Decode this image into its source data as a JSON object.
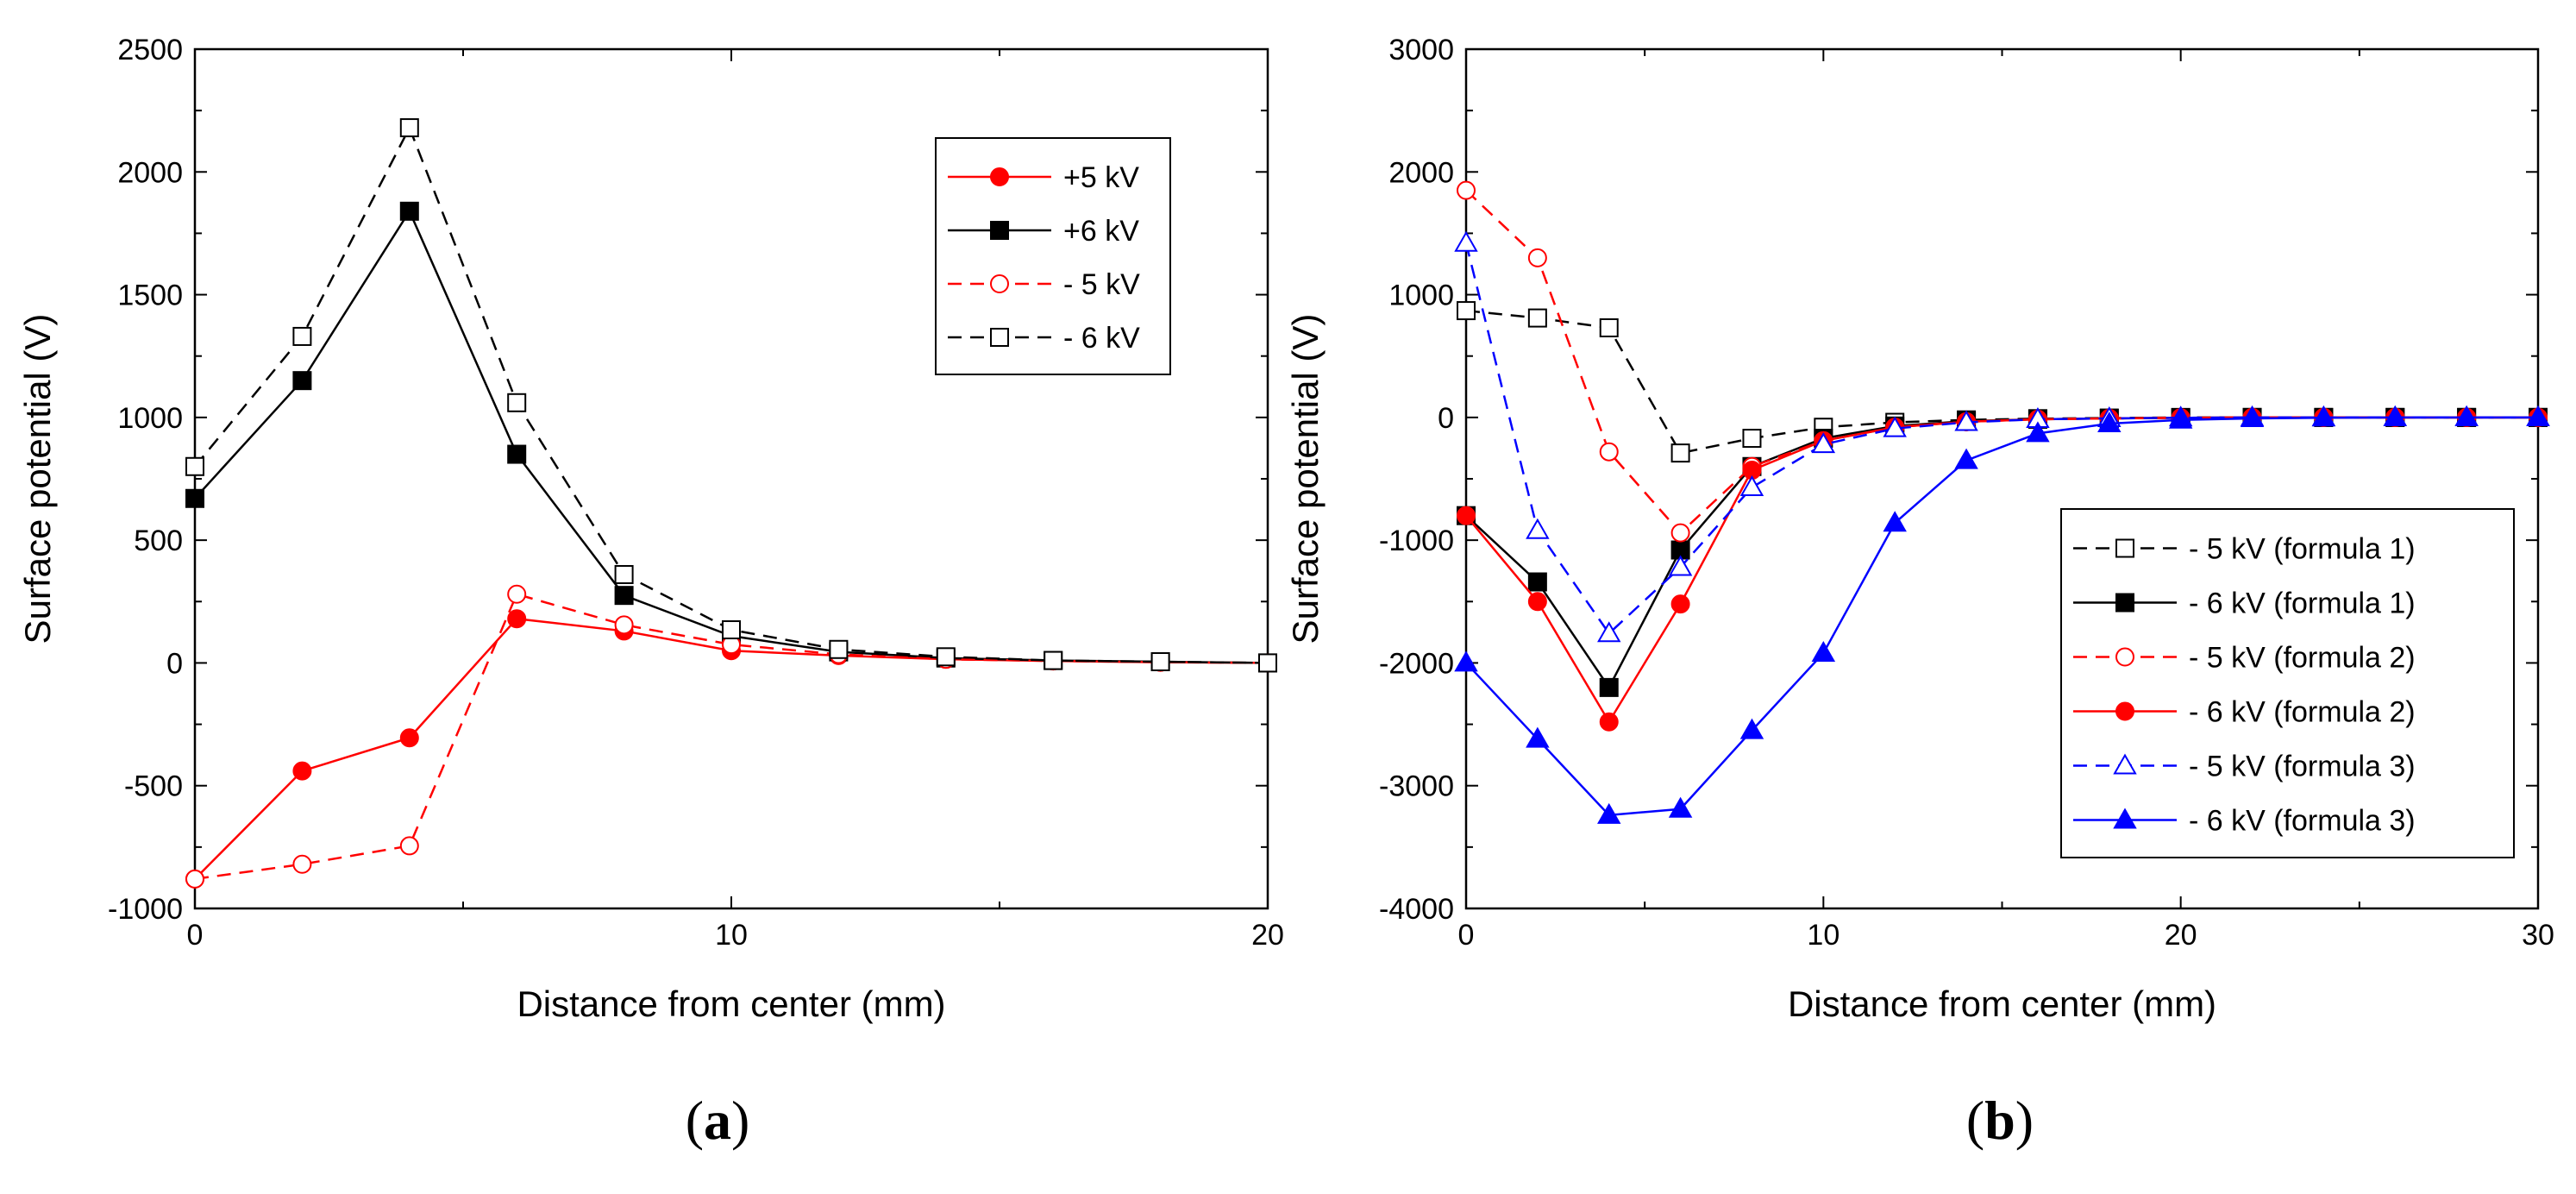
{
  "chart_data": [
    {
      "type": "line",
      "panel": "a",
      "panel_label_open": "(",
      "panel_label_letter": "a",
      "panel_label_close": ")",
      "xlabel": "Distance from center (mm)",
      "ylabel": "Surface potential (V)",
      "xlim": [
        0,
        20
      ],
      "ylim": [
        -1000,
        2500
      ],
      "xticks": [
        0,
        10,
        20
      ],
      "yticks": [
        -1000,
        -500,
        0,
        500,
        1000,
        1500,
        2000,
        2500
      ],
      "legend_position": "top-right",
      "series": [
        {
          "name": "+5 kV",
          "color": "#ff0000",
          "dash": "solid",
          "marker": "circle",
          "filled": true,
          "x": [
            0,
            2,
            4,
            6,
            8,
            10,
            12,
            14,
            16,
            18,
            20
          ],
          "y": [
            -880,
            -440,
            -305,
            180,
            130,
            50,
            30,
            15,
            8,
            3,
            0
          ]
        },
        {
          "name": "+6 kV",
          "color": "#000000",
          "dash": "solid",
          "marker": "square",
          "filled": true,
          "x": [
            0,
            2,
            4,
            6,
            8,
            10,
            12,
            14,
            16,
            18,
            20
          ],
          "y": [
            670,
            1150,
            1840,
            850,
            275,
            110,
            45,
            20,
            10,
            5,
            0
          ]
        },
        {
          "name": "- 5 kV",
          "color": "#ff0000",
          "dash": "dash",
          "marker": "circle",
          "filled": false,
          "x": [
            0,
            2,
            4,
            6,
            8,
            10,
            12,
            14,
            16,
            18,
            20
          ],
          "y": [
            -880,
            -820,
            -745,
            280,
            155,
            75,
            35,
            15,
            8,
            3,
            0
          ]
        },
        {
          "name": "- 6 kV",
          "color": "#000000",
          "dash": "dash",
          "marker": "square",
          "filled": false,
          "x": [
            0,
            2,
            4,
            6,
            8,
            10,
            12,
            14,
            16,
            18,
            20
          ],
          "y": [
            800,
            1330,
            2180,
            1060,
            360,
            135,
            55,
            25,
            10,
            5,
            0
          ]
        }
      ]
    },
    {
      "type": "line",
      "panel": "b",
      "panel_label_open": "(",
      "panel_label_letter": "b",
      "panel_label_close": ")",
      "xlabel": "Distance from center (mm)",
      "ylabel": "Surface potential (V)",
      "xlim": [
        0,
        30
      ],
      "ylim": [
        -4000,
        3000
      ],
      "xticks": [
        0,
        10,
        20,
        30
      ],
      "yticks": [
        -4000,
        -3000,
        -2000,
        -1000,
        0,
        1000,
        2000,
        3000
      ],
      "legend_position": "bottom-right",
      "series": [
        {
          "name": "- 5 kV (formula 1)",
          "color": "#000000",
          "dash": "dash",
          "marker": "square",
          "filled": false,
          "x": [
            0,
            2,
            4,
            6,
            8,
            10,
            12,
            14,
            16,
            18,
            20,
            22,
            24,
            26,
            28,
            30
          ],
          "y": [
            870,
            810,
            730,
            -290,
            -170,
            -80,
            -40,
            -20,
            -10,
            -5,
            0,
            0,
            0,
            0,
            0,
            0
          ]
        },
        {
          "name": "- 6 kV (formula 1)",
          "color": "#000000",
          "dash": "solid",
          "marker": "square",
          "filled": true,
          "x": [
            0,
            2,
            4,
            6,
            8,
            10,
            12,
            14,
            16,
            18,
            20,
            22,
            24,
            26,
            28,
            30
          ],
          "y": [
            -800,
            -1340,
            -2200,
            -1080,
            -400,
            -170,
            -70,
            -30,
            -15,
            -8,
            -3,
            0,
            0,
            0,
            0,
            0
          ]
        },
        {
          "name": "- 5 kV (formula 2)",
          "color": "#ff0000",
          "dash": "dash",
          "marker": "circle",
          "filled": false,
          "x": [
            0,
            2,
            4,
            6,
            8,
            10,
            12,
            14,
            16,
            18,
            20,
            22,
            24,
            26,
            28,
            30
          ],
          "y": [
            1850,
            1300,
            -280,
            -940,
            -400,
            -190,
            -80,
            -35,
            -15,
            -8,
            -3,
            0,
            0,
            0,
            0,
            0
          ]
        },
        {
          "name": "- 6 kV (formula 2)",
          "color": "#ff0000",
          "dash": "solid",
          "marker": "circle",
          "filled": true,
          "x": [
            0,
            2,
            4,
            6,
            8,
            10,
            12,
            14,
            16,
            18,
            20,
            22,
            24,
            26,
            28,
            30
          ],
          "y": [
            -800,
            -1500,
            -2480,
            -1520,
            -430,
            -190,
            -80,
            -35,
            -15,
            -8,
            -3,
            0,
            0,
            0,
            0,
            0
          ]
        },
        {
          "name": "- 5 kV (formula 3)",
          "color": "#0000ff",
          "dash": "dash",
          "marker": "triangle",
          "filled": false,
          "x": [
            0,
            2,
            4,
            6,
            8,
            10,
            12,
            14,
            16,
            18,
            20,
            22,
            24,
            26,
            28,
            30
          ],
          "y": [
            1420,
            -920,
            -1760,
            -1220,
            -570,
            -220,
            -90,
            -40,
            -15,
            -8,
            -3,
            0,
            0,
            0,
            0,
            0
          ]
        },
        {
          "name": "- 6 kV (formula 3)",
          "color": "#0000ff",
          "dash": "solid",
          "marker": "triangle",
          "filled": true,
          "x": [
            0,
            2,
            4,
            6,
            8,
            10,
            12,
            14,
            16,
            18,
            20,
            22,
            24,
            26,
            28,
            30
          ],
          "y": [
            -2000,
            -2620,
            -3240,
            -3190,
            -2550,
            -1920,
            -860,
            -350,
            -130,
            -50,
            -20,
            -8,
            -3,
            0,
            0,
            0
          ]
        }
      ]
    }
  ]
}
